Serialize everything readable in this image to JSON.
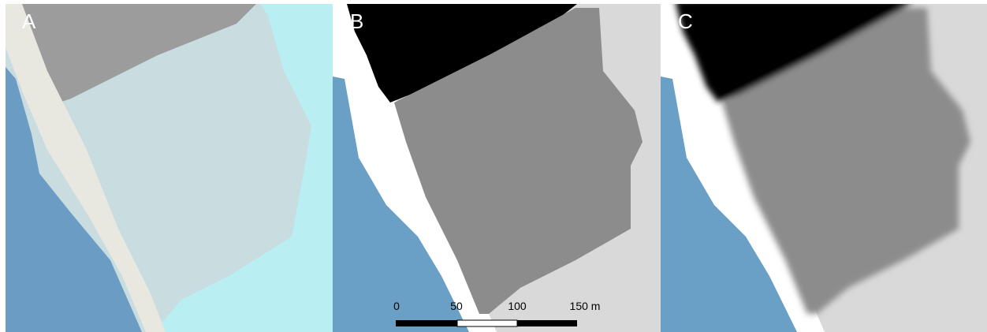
{
  "panels": [
    {
      "label": "A"
    },
    {
      "label": "B"
    },
    {
      "label": "C"
    }
  ],
  "scale_bar": {
    "labels": [
      "0",
      "50",
      "100",
      "150 m"
    ]
  }
}
